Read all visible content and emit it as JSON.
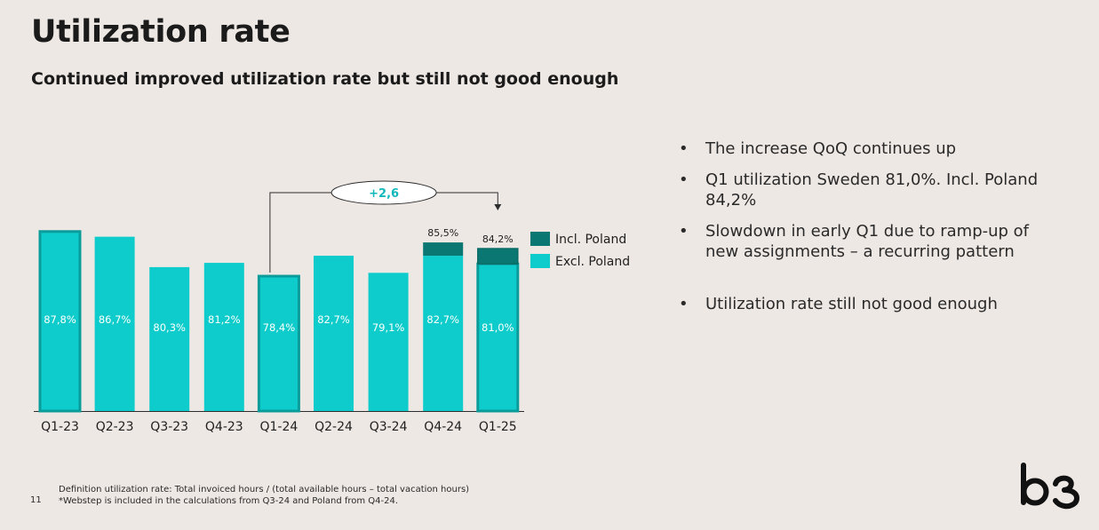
{
  "header": {
    "title": "Utilization rate",
    "subtitle": "Continued improved utilization rate but still not good enough"
  },
  "chart_data": {
    "type": "bar",
    "stacked": true,
    "categories": [
      "Q1-23",
      "Q2-23",
      "Q3-23",
      "Q4-23",
      "Q1-24",
      "Q2-24",
      "Q3-24",
      "Q4-24",
      "Q1-25"
    ],
    "series": [
      {
        "name": "Excl. Poland",
        "color": "#0fcccc",
        "values": [
          87.8,
          86.7,
          80.3,
          81.2,
          78.4,
          82.7,
          79.1,
          82.7,
          81.0
        ],
        "labels": [
          "87,8%",
          "86,7%",
          "80,3%",
          "81,2%",
          "78,4%",
          "82,7%",
          "79,1%",
          "82,7%",
          "81,0%"
        ]
      },
      {
        "name": "Incl. Poland",
        "color": "#0b7772",
        "totals": [
          null,
          null,
          null,
          null,
          null,
          null,
          null,
          85.5,
          84.2
        ],
        "labels": [
          "",
          "",
          "",
          "",
          "",
          "",
          "",
          "85,5%",
          "84,2%"
        ]
      }
    ],
    "highlighted_categories": [
      "Q1-23",
      "Q1-24",
      "Q1-25"
    ],
    "annotation": {
      "text": "+2,6",
      "from": "Q1-24",
      "to": "Q1-25"
    },
    "legend": [
      "Incl. Poland",
      "Excl. Poland"
    ],
    "legend_position": "right",
    "y_axis_visible": false,
    "grid": false
  },
  "bullets": [
    "The increase QoQ continues up",
    "Q1 utilization Sweden 81,0%. Incl. Poland 84,2%",
    "Slowdown in early Q1 due to ramp-up of new assignments – a recurring pattern",
    "Utilization rate still not good enough"
  ],
  "bullet_glyph": "•",
  "footnote": {
    "line1": "Definition utilization rate: Total invoiced hours / (total available hours – total vacation hours)",
    "line2": "*Webstep is included in the calculations from Q3-24 and Poland from Q4-24."
  },
  "page_number": "11",
  "logo": {
    "icon": "b3-logo-icon",
    "color": "#111111"
  }
}
